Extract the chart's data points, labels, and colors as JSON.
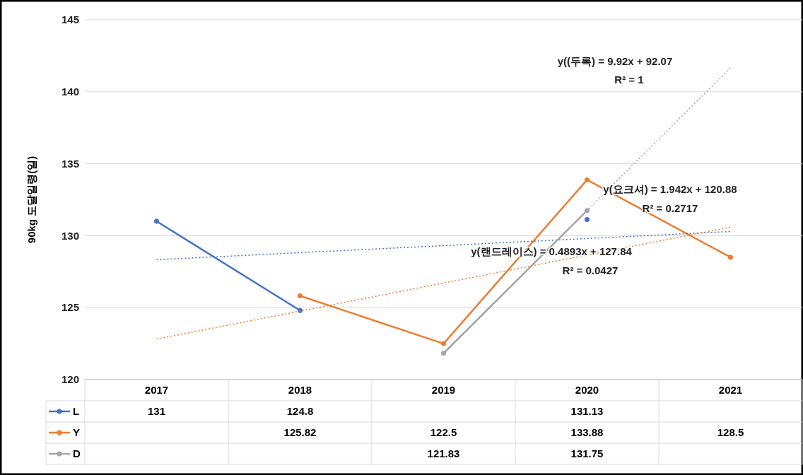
{
  "chart_data": {
    "type": "line",
    "ylabel": "90kg 도달일령(일)",
    "categories": [
      "2017",
      "2018",
      "2019",
      "2020",
      "2021"
    ],
    "series": [
      {
        "name": "L",
        "color": "#4472c4",
        "values": [
          131,
          124.8,
          null,
          131.13,
          null
        ],
        "value_labels": [
          "131",
          "124.8",
          null,
          "131.13",
          null
        ]
      },
      {
        "name": "Y",
        "color": "#ed7d31",
        "values": [
          null,
          125.82,
          122.5,
          133.88,
          128.5
        ],
        "value_labels": [
          null,
          "125.82",
          "122.5",
          "133.88",
          "128.5"
        ]
      },
      {
        "name": "D",
        "color": "#a5a5a5",
        "values": [
          null,
          null,
          121.83,
          131.75,
          null
        ],
        "value_labels": [
          null,
          null,
          "121.83",
          "131.75",
          null
        ]
      },
      {
        "type": "line",
        "color": "#4472c4",
        "line_style": "dotted",
        "marker": "none",
        "values": [
          128.33,
          128.82,
          129.31,
          129.8,
          130.29
        ]
      },
      {
        "type": "line",
        "color": "#ed7d31",
        "line_style": "dotted",
        "marker": "none",
        "values": [
          122.82,
          124.76,
          126.71,
          128.65,
          130.59
        ]
      },
      {
        "type": "line",
        "color": "#a5a5a5",
        "line_style": "dotted",
        "marker": "none",
        "values": [
          null,
          null,
          121.83,
          131.75,
          141.67
        ]
      }
    ],
    "ylim": [
      120,
      145
    ],
    "yticks": [
      120,
      125,
      130,
      135,
      140,
      145
    ],
    "grid": "y",
    "marker": "circle",
    "legend": "bottom",
    "annotations": [
      "y((두록) = 9.92x + 92.07",
      "R² = 1",
      "y(요크셔) = 1.942x + 120.88",
      "R² = 0.2717",
      "y(랜드레이스) = 0.4893x + 127.84",
      "R² = 0.0427"
    ]
  }
}
